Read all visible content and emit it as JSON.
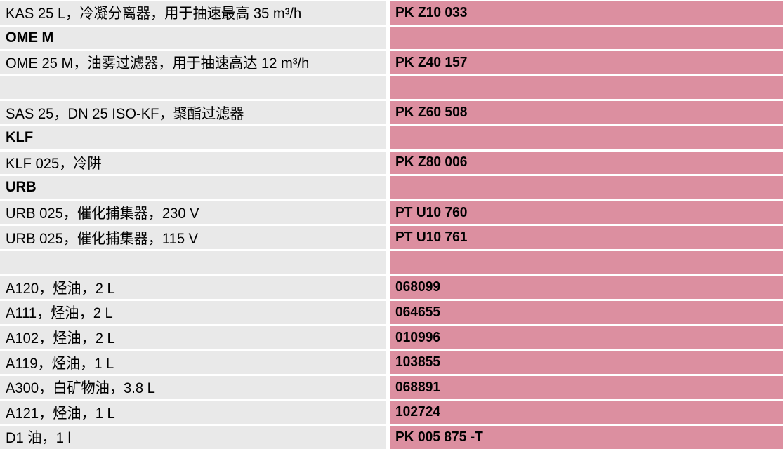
{
  "colors": {
    "part_column_bg": "#dc8fa0",
    "description_column_bg": "#e9e9e9",
    "row_separator": "#ffffff",
    "text": "#000000"
  },
  "table": {
    "columns": [
      "description",
      "part_number"
    ],
    "rows": [
      {
        "type": "item",
        "desc": "KAS 25 L，冷凝分离器，用于抽速最高 35 m³/h",
        "part": "PK Z10 033"
      },
      {
        "type": "header",
        "desc": "OME M",
        "part": ""
      },
      {
        "type": "item",
        "desc": "OME 25 M，油雾过滤器，用于抽速高达 12 m³/h",
        "part": "PK Z40 157"
      },
      {
        "type": "spacer",
        "desc": "",
        "part": ""
      },
      {
        "type": "item",
        "desc": "SAS 25，DN 25 ISO-KF，聚酯过滤器",
        "part": "PK Z60 508"
      },
      {
        "type": "header",
        "desc": "KLF",
        "part": ""
      },
      {
        "type": "item",
        "desc": "KLF 025，冷阱",
        "part": "PK Z80 006"
      },
      {
        "type": "header",
        "desc": "URB",
        "part": ""
      },
      {
        "type": "item",
        "desc": "URB 025，催化捕集器，230 V",
        "part": "PT U10 760"
      },
      {
        "type": "item",
        "desc": "URB 025，催化捕集器，115 V",
        "part": "PT U10 761"
      },
      {
        "type": "spacer",
        "desc": "",
        "part": ""
      },
      {
        "type": "item",
        "desc": "A120，烃油，2 L",
        "part": "068099"
      },
      {
        "type": "item",
        "desc": "A111，烃油，2 L",
        "part": "064655"
      },
      {
        "type": "item",
        "desc": "A102，烃油，2 L",
        "part": "010996"
      },
      {
        "type": "item",
        "desc": "A119，烃油，1 L",
        "part": "103855"
      },
      {
        "type": "item",
        "desc": "A300，白矿物油，3.8 L",
        "part": "068891"
      },
      {
        "type": "item",
        "desc": "A121，烃油，1 L",
        "part": "102724"
      },
      {
        "type": "item",
        "desc": "D1 油，1 l",
        "part": "PK 005 875 -T"
      }
    ]
  }
}
